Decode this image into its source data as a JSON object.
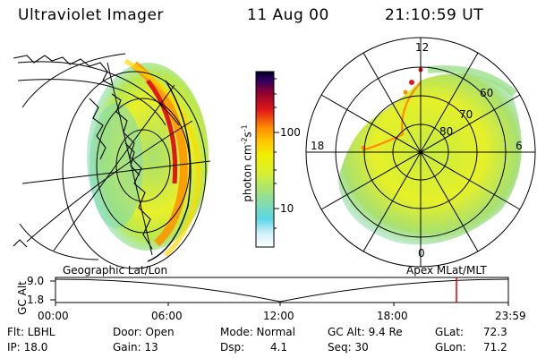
{
  "header": {
    "title": "Ultraviolet Imager",
    "date": "11 Aug 00",
    "time": "21:10:59 UT"
  },
  "colorbar": {
    "label": "photon cm^-2 s^-1",
    "label_main": "photon cm",
    "label_exp1": "-2",
    "label_s": "s",
    "label_exp2": "-1",
    "ticks": [
      "100",
      "10"
    ],
    "colors": [
      "#ffffff",
      "#5ad6e8",
      "#9be08a",
      "#d6f030",
      "#f0f000",
      "#ffc800",
      "#ff8c00",
      "#e01818",
      "#900030",
      "#300060",
      "#000020"
    ]
  },
  "left_panel": {
    "label": "Geographic Lat/Lon"
  },
  "right_panel": {
    "label": "Apex  MLat/MLT",
    "clock_labels": [
      "12",
      "18",
      "6",
      "0"
    ],
    "lat_labels": [
      "60",
      "70",
      "80"
    ]
  },
  "altitude_plot": {
    "ylabel": "GC Alt",
    "yticks": [
      "9.0",
      "1.8"
    ],
    "xticks": [
      "00:00",
      "06:00",
      "12:00",
      "18:00",
      "23:59"
    ],
    "marker_color": "#e00000"
  },
  "info": {
    "filter": "Flt: LBHL",
    "ip": "IP: 18.0",
    "door": "Door: Open",
    "gain": "Gain: 13",
    "mode": "Mode: Normal",
    "dsp_label": "Dsp:",
    "dsp_value": "4.1",
    "gc_alt": "GC Alt: 9.4 Re",
    "seq": "Seq: 30",
    "glat_label": "GLat:",
    "glat_value": "72.3",
    "glon_label": "GLon:",
    "glon_value": "71.2"
  }
}
